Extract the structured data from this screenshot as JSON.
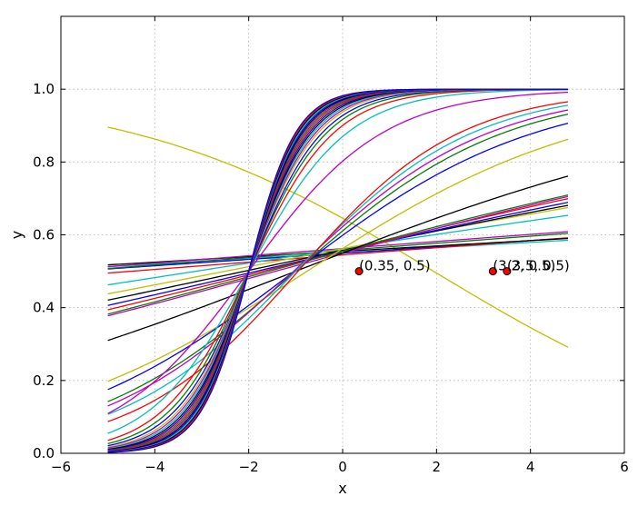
{
  "chart_data": {
    "type": "line",
    "title": "",
    "xlabel": "x",
    "ylabel": "y",
    "xlim": [
      -6,
      6
    ],
    "ylim": [
      0,
      1.2
    ],
    "xticks": [
      "−6",
      "−4",
      "−2",
      "0",
      "2",
      "4",
      "6"
    ],
    "yticks": [
      "0.0",
      "0.2",
      "0.4",
      "0.6",
      "0.8",
      "1.0"
    ],
    "grid": true,
    "legend": "none",
    "x_range": [
      -5.0,
      4.8
    ],
    "sigmoid_series": [
      {
        "color": "#bfbf00",
        "b": 0.6,
        "w": -0.31
      },
      {
        "color": "#00bfbf",
        "b": 0.2,
        "w": 0.03
      },
      {
        "color": "#0000ff",
        "b": 0.2,
        "w": 0.035
      },
      {
        "color": "#ff0000",
        "b": 0.18,
        "w": 0.04
      },
      {
        "color": "#000000",
        "b": 0.22,
        "w": 0.03
      },
      {
        "color": "#008000",
        "b": 0.23,
        "w": 0.04
      },
      {
        "color": "#bf00bf",
        "b": 0.25,
        "w": 0.04
      },
      {
        "color": "#00bfbf",
        "b": 0.25,
        "w": 0.08
      },
      {
        "color": "#bfbf00",
        "b": 0.25,
        "w": 0.1
      },
      {
        "color": "#000000",
        "b": 0.23,
        "w": 0.11
      },
      {
        "color": "#0000ff",
        "b": 0.22,
        "w": 0.12
      },
      {
        "color": "#ff0000",
        "b": 0.22,
        "w": 0.13
      },
      {
        "color": "#008000",
        "b": 0.22,
        "w": 0.14
      },
      {
        "color": "#bf00bf",
        "b": 0.2,
        "w": 0.14
      },
      {
        "color": "#000000",
        "b": 0.2,
        "w": 0.2
      },
      {
        "color": "#bfbf00",
        "b": 0.25,
        "w": 0.33
      },
      {
        "color": "#0000ff",
        "b": 0.4,
        "w": 0.39
      },
      {
        "color": "#008000",
        "b": 0.45,
        "w": 0.45
      },
      {
        "color": "#bf00bf",
        "b": 0.5,
        "w": 0.48
      },
      {
        "color": "#00bfbf",
        "b": 0.53,
        "w": 0.53
      },
      {
        "color": "#ff0000",
        "b": 0.55,
        "w": 0.58
      },
      {
        "color": "#bf00bf",
        "b": 1.4,
        "w": 0.7
      },
      {
        "color": "#00bfbf",
        "b": 1.9,
        "w": 0.95
      },
      {
        "color": "#ff0000",
        "b": 2.2,
        "w": 1.1
      },
      {
        "color": "#008000",
        "b": 2.4,
        "w": 1.2
      },
      {
        "color": "#0000ff",
        "b": 2.55,
        "w": 1.28
      },
      {
        "color": "#bfbf00",
        "b": 2.7,
        "w": 1.35
      },
      {
        "color": "#bf00bf",
        "b": 2.8,
        "w": 1.4
      },
      {
        "color": "#00bfbf",
        "b": 2.9,
        "w": 1.45
      },
      {
        "color": "#000000",
        "b": 3.0,
        "w": 1.5
      },
      {
        "color": "#0000ff",
        "b": 3.1,
        "w": 1.55
      },
      {
        "color": "#ff0000",
        "b": 3.2,
        "w": 1.6
      },
      {
        "color": "#008000",
        "b": 3.3,
        "w": 1.65
      },
      {
        "color": "#bf00bf",
        "b": 3.4,
        "w": 1.7
      },
      {
        "color": "#000000",
        "b": 3.5,
        "w": 1.75
      },
      {
        "color": "#0000ff",
        "b": 3.6,
        "w": 1.8
      },
      {
        "color": "#00bfbf",
        "b": 3.7,
        "w": 1.85
      },
      {
        "color": "#000000",
        "b": 3.8,
        "w": 1.9
      },
      {
        "color": "#ff0000",
        "b": 3.9,
        "w": 1.95
      },
      {
        "color": "#0000ff",
        "b": 4.0,
        "w": 2.0
      }
    ],
    "points": [
      {
        "x": 0.35,
        "y": 0.5,
        "label": "(0.35, 0.5)",
        "color": "#ff0000"
      },
      {
        "x": 3.2,
        "y": 0.5,
        "label": "(3.2, 0.5)",
        "color": "#ff0000"
      },
      {
        "x": 3.5,
        "y": 0.5,
        "label": "(3.5, 0.5)",
        "color": "#ff0000"
      }
    ],
    "colors": {
      "grid": "#b0b0b0",
      "axes": "#000000"
    }
  }
}
